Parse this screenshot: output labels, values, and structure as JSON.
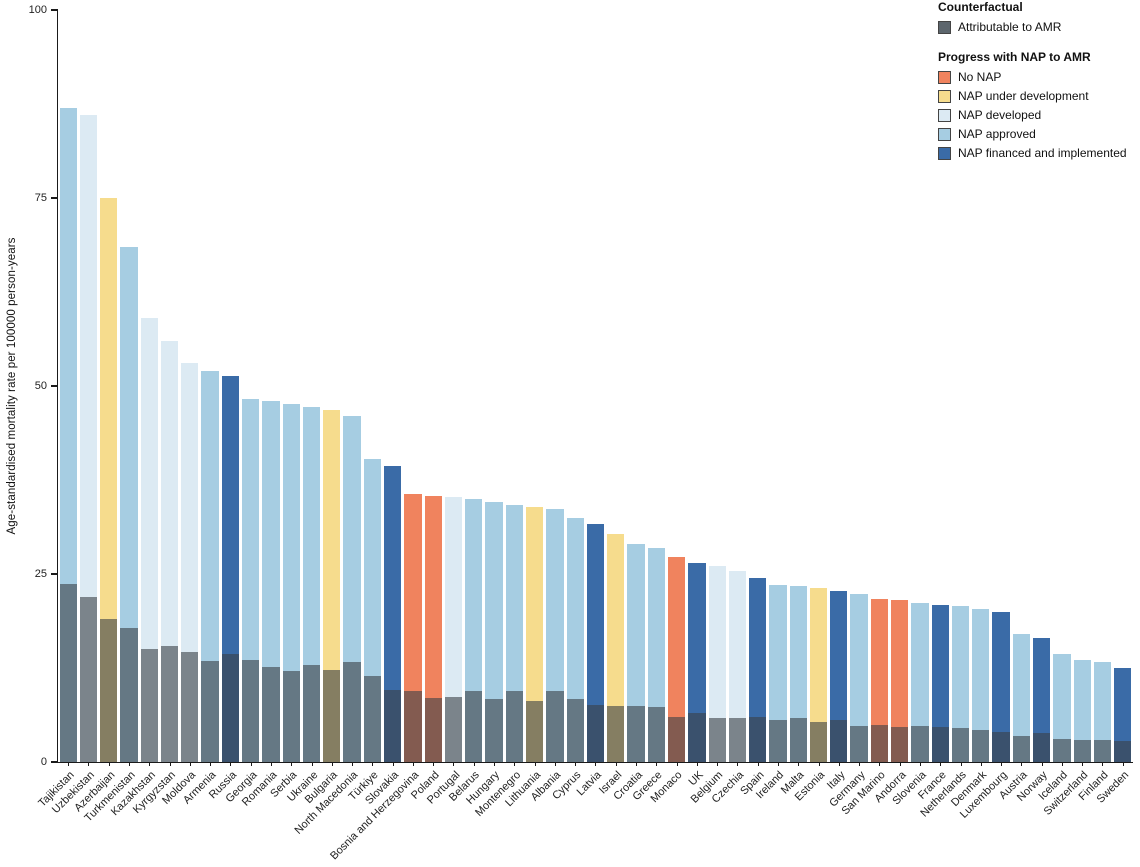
{
  "legend": {
    "counterfactual_title": "Counterfactual",
    "attributable_label": "Attributable to AMR",
    "attributable_color": "#5D666D",
    "nap_title": "Progress with NAP to AMR",
    "items": [
      {
        "label": "No NAP",
        "key": "no_nap"
      },
      {
        "label": "NAP under development",
        "key": "nap_under_development"
      },
      {
        "label": "NAP developed",
        "key": "nap_developed"
      },
      {
        "label": "NAP approved",
        "key": "nap_approved"
      },
      {
        "label": "NAP financed and implemented",
        "key": "nap_financed"
      }
    ]
  },
  "colors": {
    "no_nap": "#F0835E",
    "nap_under_development": "#F6DC8D",
    "nap_developed": "#DCEAF3",
    "nap_approved": "#A6CDE2",
    "nap_financed": "#3A6BA7",
    "overlay_dark": "#3A4046",
    "overlay_mix": 0.6,
    "axis": "#1A1A1A"
  },
  "chart_data": {
    "type": "bar",
    "title": "",
    "ylabel": "Age-standardised mortality rate per 100000 person-years",
    "xlabel": "",
    "ylim": [
      0,
      100
    ],
    "yticks": [
      0,
      25,
      50,
      75,
      100
    ],
    "grid": false,
    "legend_position": "top-right",
    "categories": [
      "Tajikistan",
      "Uzbekistan",
      "Azerbaijan",
      "Turkmenistan",
      "Kazakhstan",
      "Kyrgyzstan",
      "Moldova",
      "Armenia",
      "Russia",
      "Georgia",
      "Romania",
      "Serbia",
      "Ukraine",
      "Bulgaria",
      "North Macedonia",
      "Türkiye",
      "Slovakia",
      "Bosnia and Herzegovina",
      "Poland",
      "Portugal",
      "Belarus",
      "Hungary",
      "Montenegro",
      "Lithuania",
      "Albania",
      "Cyprus",
      "Latvia",
      "Israel",
      "Croatia",
      "Greece",
      "Monaco",
      "UK",
      "Belgium",
      "Czechia",
      "Spain",
      "Ireland",
      "Malta",
      "Estonia",
      "Italy",
      "Germany",
      "San Marino",
      "Andorra",
      "Slovenia",
      "France",
      "Netherlands",
      "Denmark",
      "Luxembourg",
      "Austria",
      "Norway",
      "Iceland",
      "Switzerland",
      "Finland",
      "Sweden"
    ],
    "nap_status": [
      "nap_approved",
      "nap_developed",
      "nap_under_development",
      "nap_approved",
      "nap_developed",
      "nap_developed",
      "nap_developed",
      "nap_approved",
      "nap_financed",
      "nap_approved",
      "nap_approved",
      "nap_approved",
      "nap_approved",
      "nap_under_development",
      "nap_approved",
      "nap_approved",
      "nap_financed",
      "no_nap",
      "no_nap",
      "nap_developed",
      "nap_approved",
      "nap_approved",
      "nap_approved",
      "nap_under_development",
      "nap_approved",
      "nap_approved",
      "nap_financed",
      "nap_under_development",
      "nap_approved",
      "nap_approved",
      "no_nap",
      "nap_financed",
      "nap_developed",
      "nap_developed",
      "nap_financed",
      "nap_approved",
      "nap_approved",
      "nap_under_development",
      "nap_financed",
      "nap_approved",
      "no_nap",
      "no_nap",
      "nap_approved",
      "nap_financed",
      "nap_approved",
      "nap_approved",
      "nap_financed",
      "nap_approved",
      "nap_financed",
      "nap_approved",
      "nap_approved",
      "nap_approved",
      "nap_financed"
    ],
    "series": [
      {
        "name": "Counterfactual (total)",
        "values": [
          87.0,
          86.0,
          75.0,
          68.5,
          59.0,
          56.0,
          53.0,
          52.0,
          51.3,
          48.3,
          48.0,
          47.6,
          47.2,
          46.8,
          46.0,
          40.3,
          39.3,
          35.6,
          35.4,
          35.2,
          35.0,
          34.6,
          34.2,
          33.9,
          33.6,
          32.5,
          31.6,
          30.3,
          29.0,
          28.4,
          27.3,
          26.5,
          26.0,
          25.4,
          24.5,
          23.6,
          23.4,
          23.1,
          22.8,
          22.4,
          21.7,
          21.5,
          21.1,
          20.9,
          20.7,
          20.4,
          19.9,
          17.0,
          16.5,
          14.4,
          13.6,
          13.3,
          12.5
        ]
      },
      {
        "name": "Attributable to AMR",
        "values": [
          23.7,
          22.0,
          19.0,
          17.8,
          15.0,
          15.4,
          14.6,
          13.4,
          14.4,
          13.5,
          12.6,
          12.1,
          12.9,
          12.2,
          13.3,
          11.4,
          9.6,
          9.4,
          8.5,
          8.6,
          9.4,
          8.4,
          9.4,
          8.1,
          9.4,
          8.4,
          7.6,
          7.4,
          7.4,
          7.3,
          6.0,
          6.5,
          5.9,
          5.9,
          6.0,
          5.6,
          5.9,
          5.3,
          5.6,
          4.8,
          4.9,
          4.7,
          4.8,
          4.6,
          4.5,
          4.3,
          4.0,
          3.4,
          3.9,
          3.1,
          2.9,
          2.9,
          2.8
        ]
      }
    ]
  }
}
